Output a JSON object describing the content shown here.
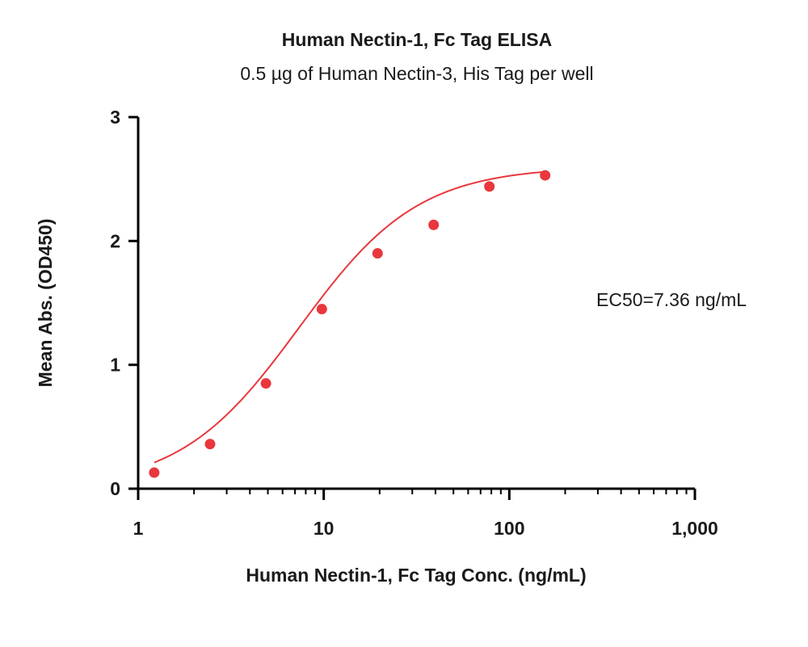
{
  "chart_data": {
    "type": "scatter",
    "title": "Human Nectin-1, Fc Tag ELISA",
    "subtitle": "0.5 µg of Human Nectin-3, His Tag per well",
    "xlabel": "Human Nectin-1, Fc Tag Conc. (ng/mL)",
    "ylabel": "Mean Abs. (OD450)",
    "x_scale": "log",
    "xlim": [
      1,
      1000
    ],
    "ylim": [
      0,
      3
    ],
    "x_ticks": [
      1,
      10,
      100,
      1000
    ],
    "x_tick_labels": [
      "1",
      "10",
      "100",
      "1,000"
    ],
    "y_ticks": [
      0,
      1,
      2,
      3
    ],
    "y_tick_labels": [
      "0",
      "1",
      "2",
      "3"
    ],
    "grid": false,
    "series": [
      {
        "color": "#e8373d",
        "points": [
          {
            "x": 1.22,
            "y": 0.13
          },
          {
            "x": 2.44,
            "y": 0.36
          },
          {
            "x": 4.88,
            "y": 0.85
          },
          {
            "x": 9.77,
            "y": 1.45
          },
          {
            "x": 19.5,
            "y": 1.9
          },
          {
            "x": 39.1,
            "y": 2.13
          },
          {
            "x": 78.1,
            "y": 2.44
          },
          {
            "x": 156,
            "y": 2.53
          }
        ],
        "fit": {
          "type": "4PL",
          "bottom": 0.0,
          "top": 2.6,
          "ec50": 7.36,
          "hill": 1.35,
          "x_range": [
            1.22,
            156
          ]
        }
      }
    ],
    "annotations": [
      {
        "text": "EC50=7.36 ng/mL"
      }
    ]
  }
}
